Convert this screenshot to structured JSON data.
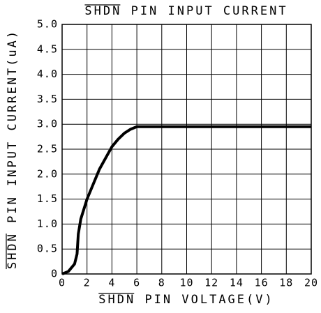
{
  "chart_data": {
    "type": "line",
    "title": "SHDN PIN INPUT CURRENT",
    "x_label": "SHDN PIN VOLTAGE(V)",
    "y_label": "SHDN PIN INPUT CURRENT(uA)",
    "xlim": [
      0,
      20
    ],
    "xticks": [
      0,
      2,
      4,
      6,
      8,
      10,
      12,
      14,
      16,
      18,
      20
    ],
    "ylim": [
      0,
      5
    ],
    "yticks": [
      0,
      {
        "value": 0.5,
        "label": "0.5"
      },
      {
        "value": 1,
        "label": "1.0"
      },
      {
        "value": 1.5,
        "label": "1.5"
      },
      {
        "value": 2,
        "label": "2.0"
      },
      {
        "value": 2.5,
        "label": "2.5"
      },
      {
        "value": 3,
        "label": "3.0"
      },
      {
        "value": 3.5,
        "label": "3.5"
      },
      {
        "value": 4,
        "label": "4.0"
      },
      {
        "value": 4.5,
        "label": "4.5"
      },
      {
        "value": 5,
        "label": "5.0"
      }
    ],
    "grid": true,
    "series": [
      {
        "name": "SHDN pin input current",
        "color": "#000000",
        "x": [
          0,
          0.5,
          1,
          1.2,
          1.3,
          1.5,
          2,
          3,
          4,
          4.5,
          5,
          5.5,
          6,
          20
        ],
        "values": [
          0,
          0.05,
          0.2,
          0.4,
          0.8,
          1.1,
          1.5,
          2.1,
          2.55,
          2.7,
          2.82,
          2.9,
          2.95,
          2.95
        ]
      }
    ]
  }
}
